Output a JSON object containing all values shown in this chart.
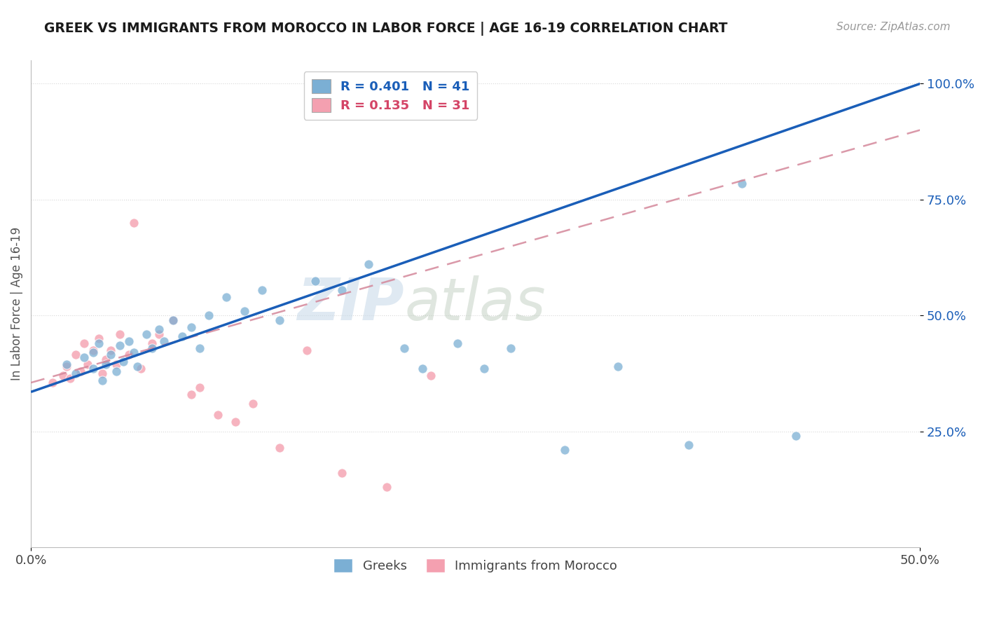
{
  "title": "GREEK VS IMMIGRANTS FROM MOROCCO IN LABOR FORCE | AGE 16-19 CORRELATION CHART",
  "source": "Source: ZipAtlas.com",
  "ylabel": "In Labor Force | Age 16-19",
  "xlim": [
    0.0,
    0.5
  ],
  "ylim": [
    0.0,
    1.05
  ],
  "xtick_positions": [
    0.0,
    0.5
  ],
  "xtick_labels": [
    "0.0%",
    "50.0%"
  ],
  "ytick_positions": [
    0.25,
    0.5,
    0.75,
    1.0
  ],
  "ytick_labels": [
    "25.0%",
    "50.0%",
    "75.0%",
    "100.0%"
  ],
  "legend1_label": "R = 0.401   N = 41",
  "legend2_label": "R = 0.135   N = 31",
  "greek_color": "#7bafd4",
  "morocco_color": "#f4a0b0",
  "trendline_greek_color": "#1a5eb8",
  "trendline_morocco_color": "#d4879a",
  "greek_scatter_x": [
    0.02,
    0.025,
    0.03,
    0.035,
    0.035,
    0.038,
    0.04,
    0.042,
    0.045,
    0.048,
    0.05,
    0.052,
    0.055,
    0.058,
    0.06,
    0.065,
    0.068,
    0.072,
    0.075,
    0.08,
    0.085,
    0.09,
    0.095,
    0.1,
    0.11,
    0.12,
    0.13,
    0.14,
    0.16,
    0.175,
    0.19,
    0.21,
    0.22,
    0.24,
    0.255,
    0.27,
    0.3,
    0.33,
    0.37,
    0.4,
    0.43
  ],
  "greek_scatter_y": [
    0.395,
    0.375,
    0.41,
    0.385,
    0.42,
    0.44,
    0.36,
    0.395,
    0.415,
    0.38,
    0.435,
    0.4,
    0.445,
    0.42,
    0.39,
    0.46,
    0.43,
    0.47,
    0.445,
    0.49,
    0.455,
    0.475,
    0.43,
    0.5,
    0.54,
    0.51,
    0.555,
    0.49,
    0.575,
    0.555,
    0.61,
    0.43,
    0.385,
    0.44,
    0.385,
    0.43,
    0.21,
    0.39,
    0.22,
    0.785,
    0.24
  ],
  "morocco_scatter_x": [
    0.012,
    0.018,
    0.02,
    0.022,
    0.025,
    0.028,
    0.03,
    0.032,
    0.035,
    0.038,
    0.04,
    0.042,
    0.045,
    0.048,
    0.05,
    0.055,
    0.058,
    0.062,
    0.068,
    0.072,
    0.08,
    0.09,
    0.095,
    0.105,
    0.115,
    0.125,
    0.14,
    0.155,
    0.175,
    0.2,
    0.225
  ],
  "morocco_scatter_y": [
    0.355,
    0.37,
    0.39,
    0.365,
    0.415,
    0.38,
    0.44,
    0.395,
    0.425,
    0.45,
    0.375,
    0.405,
    0.425,
    0.395,
    0.46,
    0.415,
    0.7,
    0.385,
    0.44,
    0.46,
    0.49,
    0.33,
    0.345,
    0.285,
    0.27,
    0.31,
    0.215,
    0.425,
    0.16,
    0.13,
    0.37
  ],
  "greek_trend_x": [
    0.0,
    0.5
  ],
  "greek_trend_y": [
    0.335,
    1.0
  ],
  "morocco_trend_x": [
    0.0,
    0.5
  ],
  "morocco_trend_y": [
    0.355,
    0.9
  ],
  "watermark_zip": "ZIP",
  "watermark_atlas": "atlas",
  "grid_color": "#e0e0e0",
  "grid_dotted_color": "#d8d8d8"
}
